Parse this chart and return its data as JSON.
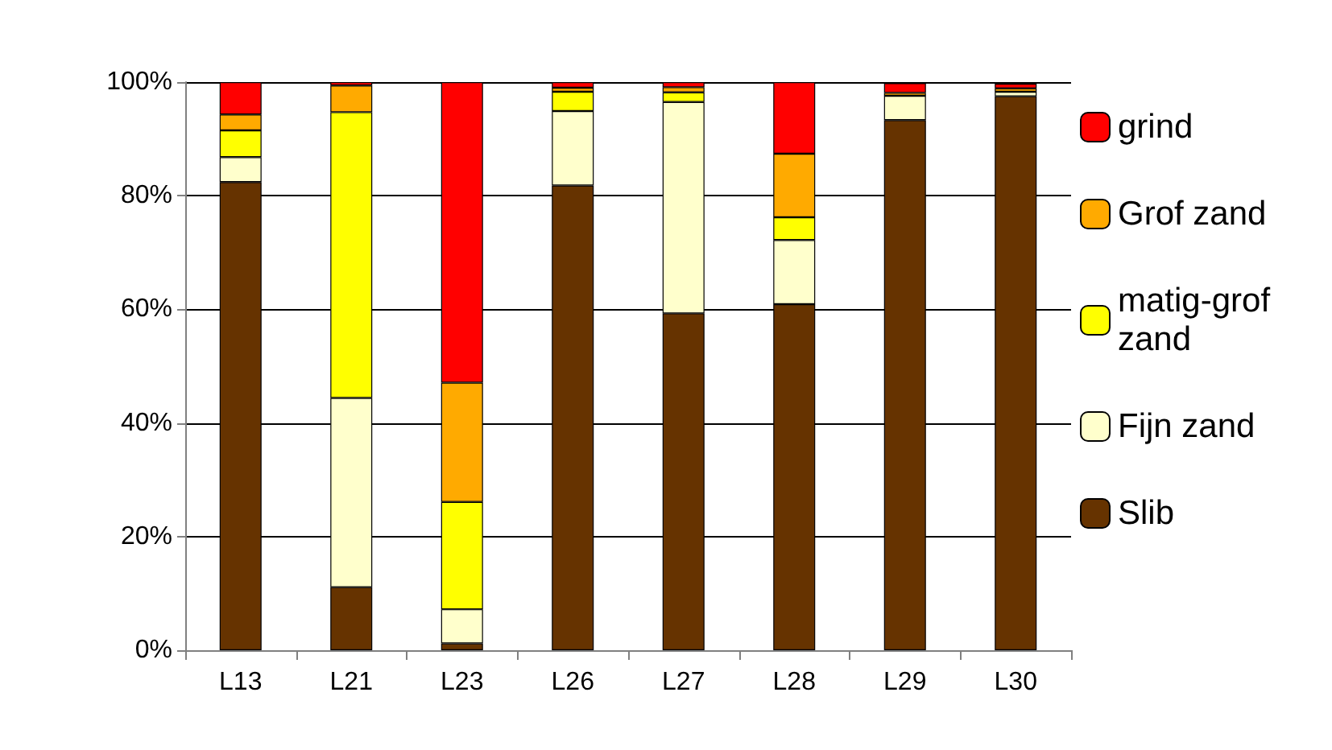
{
  "chart_data": {
    "type": "bar",
    "stacked": true,
    "categories": [
      "L13",
      "L21",
      "L23",
      "L26",
      "L27",
      "L28",
      "L29",
      "L30"
    ],
    "series": [
      {
        "name": "Slib",
        "color": "#663300",
        "values": [
          82.4,
          11.1,
          1.2,
          81.8,
          59.3,
          60.9,
          93.3,
          97.5
        ]
      },
      {
        "name": "Fijn zand",
        "color": "#ffffcc",
        "values": [
          4.4,
          33.3,
          6.0,
          13.1,
          37.2,
          11.3,
          4.3,
          0.8
        ]
      },
      {
        "name": "matig-grof zand",
        "color": "#ffff00",
        "values": [
          4.7,
          50.3,
          18.9,
          3.4,
          1.7,
          4.0,
          null,
          null
        ]
      },
      {
        "name": "Grof zand",
        "color": "#ffaa00",
        "values": [
          2.8,
          4.7,
          21.0,
          0.7,
          0.9,
          11.2,
          0.5,
          0.6
        ]
      },
      {
        "name": "grind",
        "color": "#ff0000",
        "values": [
          5.7,
          0.6,
          52.9,
          1.0,
          0.9,
          12.6,
          1.7,
          0.8
        ]
      }
    ],
    "ylim": [
      0,
      100
    ],
    "yticks": [
      {
        "value": 0,
        "label": "0%"
      },
      {
        "value": 20,
        "label": "20%"
      },
      {
        "value": 40,
        "label": "40%"
      },
      {
        "value": 60,
        "label": "60%"
      },
      {
        "value": 80,
        "label": "80%"
      },
      {
        "value": 100,
        "label": "100%"
      }
    ],
    "grid": "y",
    "legend": "right"
  }
}
